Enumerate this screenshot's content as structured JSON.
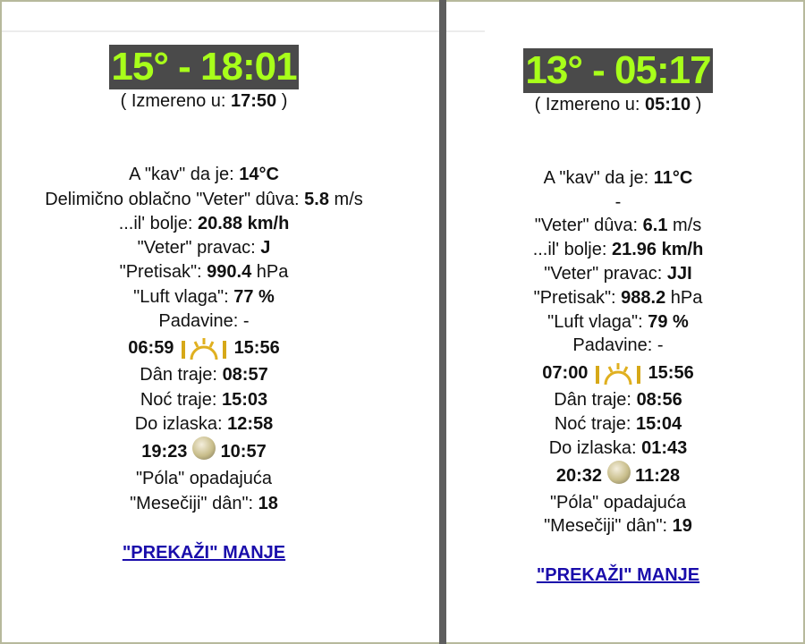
{
  "panels": [
    {
      "title": "15° - 18:01",
      "measured_label": "( Izmereno u:",
      "measured_time": "17:50",
      "measured_close": ")",
      "feels_label": "A \"kav\" da je:",
      "feels_value": "14°C",
      "condition": "Delimično oblačno",
      "wind_label": "\"Veter\" dûva:",
      "wind_ms": "5.8",
      "wind_ms_unit": "m/s",
      "kmh_label": "...il' bolje:",
      "kmh_value": "20.88 km/h",
      "dir_label": "\"Veter\" pravac:",
      "dir_value": "J",
      "pressure_label": "\"Pretisak\":",
      "pressure_value": "990.4",
      "pressure_unit": "hPa",
      "humidity_label": "\"Luft vlaga\":",
      "humidity_value": "77 %",
      "precip_label": "Padavine:",
      "precip_value": "-",
      "sunrise": "06:59",
      "sunset": "15:56",
      "day_label": "Dân traje:",
      "day_value": "08:57",
      "night_label": "Noć traje:",
      "night_value": "15:03",
      "until_label": "Do izlaska:",
      "until_value": "12:58",
      "moonrise": "19:23",
      "moonset": "10:57",
      "phase_a": "\"Póla\"",
      "phase_b": "opadajuća",
      "moonday_label": "\"Mesečiji\" dân\":",
      "moonday_value": "18",
      "link": "\"PREKAŽI\" MANJE"
    },
    {
      "title": "13° - 05:17",
      "measured_label": "( Izmereno u:",
      "measured_time": "05:10",
      "measured_close": ")",
      "feels_label": "A \"kav\" da je:",
      "feels_value": "11°C",
      "condition": "-",
      "wind_label": "\"Veter\" dûva:",
      "wind_ms": "6.1",
      "wind_ms_unit": "m/s",
      "kmh_label": "...il' bolje:",
      "kmh_value": "21.96 km/h",
      "dir_label": "\"Veter\" pravac:",
      "dir_value": "JJI",
      "pressure_label": "\"Pretisak\":",
      "pressure_value": "988.2",
      "pressure_unit": "hPa",
      "humidity_label": "\"Luft vlaga\":",
      "humidity_value": "79 %",
      "precip_label": "Padavine:",
      "precip_value": "-",
      "sunrise": "07:00",
      "sunset": "15:56",
      "day_label": "Dân traje:",
      "day_value": "08:56",
      "night_label": "Noć traje:",
      "night_value": "15:04",
      "until_label": "Do izlaska:",
      "until_value": "01:43",
      "moonrise": "20:32",
      "moonset": "11:28",
      "phase_a": "\"Póla\"",
      "phase_b": "opadajuća",
      "moonday_label": "\"Mesečiji\" dân\":",
      "moonday_value": "19",
      "link": "\"PREKAŽI\" MANJE"
    }
  ],
  "colors": {
    "title_bg": "#4a4a4a",
    "title_fg": "#a8ff1a",
    "link": "#1a0dab"
  }
}
